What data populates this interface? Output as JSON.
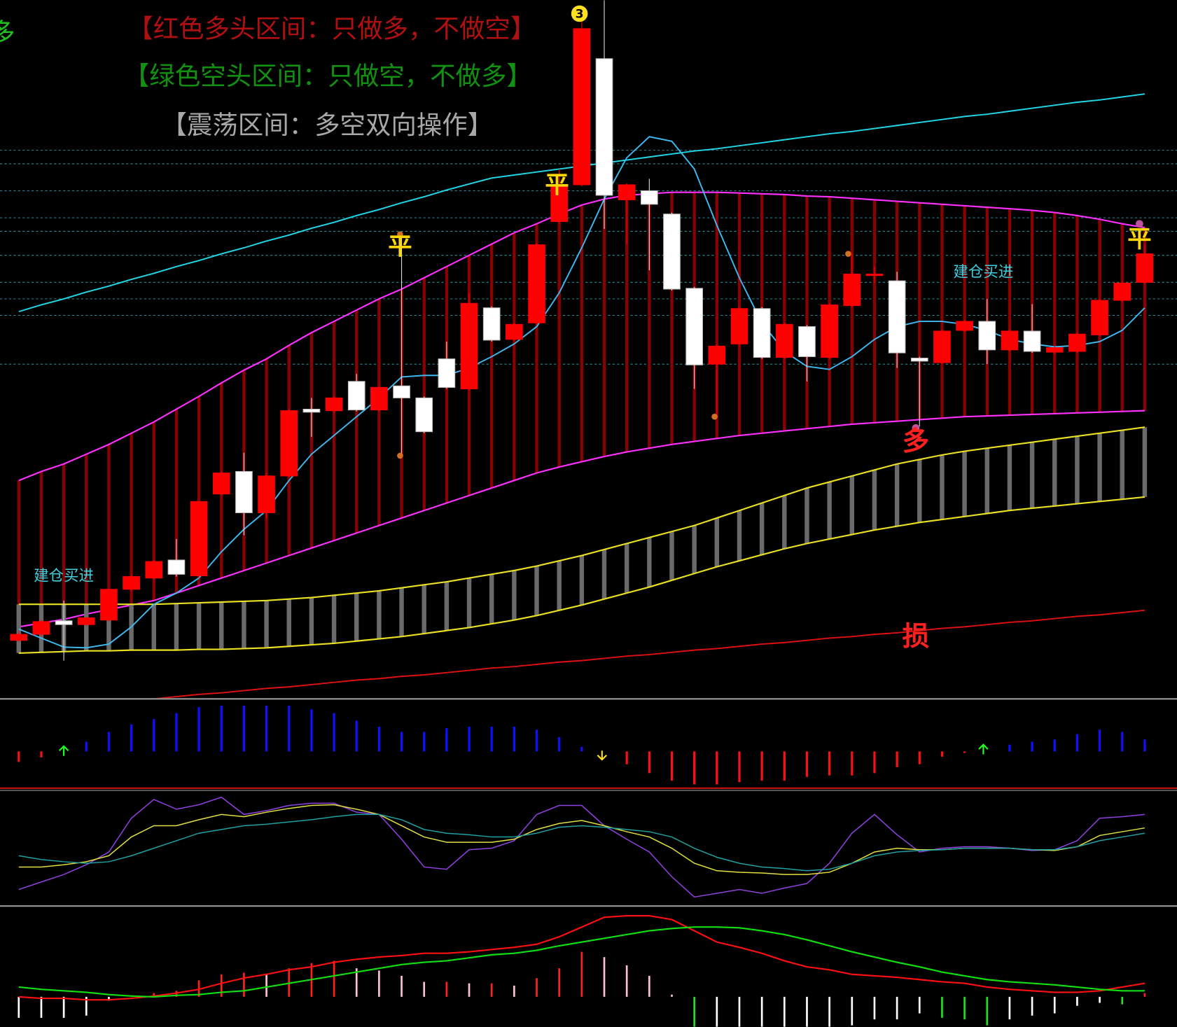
{
  "chart_data": [
    {
      "type": "candlestick",
      "ylim": [
        0,
        930
      ],
      "up_color": "#ff0000",
      "down_color": "#ffffff",
      "open": [
        77,
        85,
        103,
        98,
        104,
        145,
        160,
        184,
        163,
        272,
        302,
        247,
        296,
        385,
        383,
        422,
        384,
        416,
        400,
        452,
        412,
        520,
        478,
        500,
        635,
        684,
        852,
        664,
        676,
        645,
        546,
        445,
        472,
        519,
        454,
        495,
        454,
        523,
        563,
        556,
        453,
        447,
        490,
        502,
        464,
        489,
        461,
        462,
        484,
        530,
        554
      ],
      "high": [
        90,
        105,
        130,
        108,
        146,
        164,
        184,
        212,
        262,
        302,
        327,
        300,
        385,
        400,
        402,
        432,
        416,
        618,
        402,
        475,
        540,
        522,
        500,
        606,
        705,
        920,
        930,
        686,
        692,
        647,
        548,
        471,
        521,
        521,
        500,
        497,
        526,
        592,
        575,
        568,
        455,
        491,
        504,
        532,
        491,
        525,
        469,
        487,
        532,
        555,
        605
      ],
      "low": [
        75,
        82,
        50,
        96,
        102,
        143,
        158,
        162,
        160,
        270,
        217,
        240,
        294,
        348,
        380,
        382,
        382,
        323,
        353,
        412,
        410,
        475,
        476,
        498,
        633,
        682,
        625,
        605,
        570,
        543,
        412,
        375,
        470,
        452,
        452,
        422,
        452,
        521,
        553,
        440,
        362,
        445,
        488,
        445,
        462,
        460,
        459,
        460,
        482,
        528,
        552
      ],
      "close": [
        85,
        102,
        98,
        107,
        145,
        162,
        182,
        165,
        262,
        300,
        247,
        296,
        383,
        381,
        400,
        384,
        414,
        400,
        355,
        414,
        526,
        477,
        498,
        604,
        682,
        892,
        670,
        684,
        658,
        545,
        444,
        469,
        519,
        454,
        498,
        455,
        524,
        565,
        565,
        460,
        449,
        489,
        502,
        464,
        489,
        462,
        467,
        485,
        530,
        553,
        592
      ],
      "bands": [
        {
          "color": "#ff30ff",
          "bar_color": "#8b0000",
          "upper": [
            290,
            302,
            312,
            325,
            338,
            353,
            368,
            385,
            402,
            420,
            437,
            452,
            470,
            487,
            502,
            517,
            532,
            545,
            560,
            575,
            590,
            605,
            620,
            632,
            645,
            657,
            665,
            670,
            672,
            674,
            674,
            674,
            673,
            672,
            671,
            669,
            668,
            666,
            664,
            662,
            660,
            658,
            656,
            654,
            652,
            650,
            647,
            643,
            638,
            632,
            627
          ],
          "lower": [
            95,
            100,
            105,
            112,
            118,
            124,
            130,
            140,
            150,
            160,
            170,
            180,
            190,
            200,
            210,
            220,
            230,
            240,
            250,
            260,
            270,
            280,
            290,
            300,
            308,
            315,
            322,
            328,
            333,
            338,
            342,
            346,
            350,
            353,
            356,
            359,
            362,
            365,
            367,
            369,
            371,
            373,
            375,
            376,
            377,
            378,
            379,
            380,
            381,
            382,
            383
          ]
        },
        {
          "color": "#e8e020",
          "bar_color": "#6a6a6a",
          "upper": [
            125,
            125,
            125,
            125,
            125,
            125,
            125,
            126,
            127,
            128,
            129,
            130,
            132,
            134,
            137,
            140,
            143,
            147,
            151,
            155,
            160,
            165,
            170,
            176,
            183,
            190,
            198,
            206,
            214,
            222,
            230,
            240,
            250,
            260,
            270,
            280,
            288,
            296,
            304,
            312,
            318,
            324,
            329,
            333,
            337,
            341,
            345,
            349,
            353,
            357,
            361
          ],
          "lower": [
            60,
            61,
            62,
            63,
            63,
            64,
            64,
            64,
            65,
            65,
            66,
            67,
            69,
            71,
            73,
            76,
            79,
            82,
            86,
            90,
            94,
            99,
            104,
            110,
            117,
            124,
            132,
            140,
            148,
            157,
            166,
            175,
            183,
            191,
            199,
            206,
            212,
            218,
            224,
            229,
            234,
            238,
            242,
            246,
            250,
            253,
            256,
            259,
            262,
            265,
            268
          ]
        }
      ],
      "lines": [
        {
          "color": "#20d8e8",
          "values": [
            515,
            524,
            532,
            541,
            549,
            558,
            566,
            575,
            583,
            592,
            600,
            609,
            617,
            626,
            634,
            643,
            651,
            660,
            668,
            677,
            685,
            693,
            697,
            701,
            705,
            709,
            713,
            717,
            721,
            725,
            729,
            732,
            736,
            740,
            744,
            748,
            752,
            755,
            759,
            763,
            767,
            771,
            775,
            778,
            782,
            786,
            790,
            794,
            797,
            801,
            805
          ]
        },
        {
          "color": "#40b8f0",
          "values": [
            92,
            80,
            68,
            67,
            72,
            95,
            125,
            140,
            160,
            195,
            225,
            250,
            290,
            325,
            350,
            375,
            400,
            428,
            430,
            430,
            440,
            455,
            472,
            495,
            540,
            600,
            665,
            720,
            748,
            742,
            705,
            630,
            560,
            500,
            462,
            442,
            438,
            455,
            478,
            495,
            502,
            502,
            498,
            490,
            478,
            472,
            468,
            470,
            475,
            490,
            520
          ]
        },
        {
          "color": "#e01010",
          "values": [
            -17,
            -14,
            -11,
            -9,
            -6,
            -3,
            -1,
            2,
            5,
            7,
            10,
            13,
            15,
            18,
            21,
            24,
            26,
            29,
            31,
            34,
            37,
            40,
            42,
            45,
            48,
            50,
            53,
            56,
            58,
            61,
            64,
            66,
            69,
            72,
            74,
            77,
            80,
            82,
            85,
            87,
            90,
            93,
            95,
            98,
            101,
            103,
            106,
            109,
            111,
            114,
            117
          ]
        }
      ],
      "levels": [
        730,
        712,
        676,
        640,
        622,
        590,
        554,
        532,
        510,
        445
      ],
      "level_color": "#2a8a9a",
      "annotations": [
        {
          "text": "【红色多头区间：只做多，不做空】",
          "color": "#b01010"
        },
        {
          "text": "【绿色空头区间：只做空，不做多】",
          "color": "#129012"
        },
        {
          "text": "【震荡区间：多空双向操作】",
          "color": "#a8a8a8"
        },
        {
          "text": "多",
          "color": "#20c020"
        },
        {
          "text": "平",
          "color": "#ffd700"
        },
        {
          "text": "平",
          "color": "#ffd700"
        },
        {
          "text": "平",
          "color": "#ffd700"
        },
        {
          "text": "建仓买进",
          "color": "#40d0e0"
        },
        {
          "text": "建仓买进",
          "color": "#40d0e0"
        },
        {
          "text": "多",
          "color": "#ff2020"
        },
        {
          "text": "损",
          "color": "#ff2020"
        },
        {
          "text": "3",
          "color": "#000000"
        }
      ]
    },
    {
      "type": "bar",
      "ylim": [
        -49,
        69
      ],
      "pos_color": "#1010ff",
      "neg_color": "#ff1010",
      "values": [
        -14,
        -8,
        null,
        13,
        26,
        36,
        43,
        51,
        59,
        61,
        61,
        61,
        61,
        56,
        51,
        41,
        33,
        26,
        26,
        31,
        33,
        33,
        33,
        29,
        19,
        6,
        null,
        -17,
        -29,
        -39,
        -44,
        -44,
        -41,
        -39,
        -39,
        -34,
        -32,
        -32,
        -29,
        -21,
        -17,
        -7,
        -2,
        null,
        9,
        13,
        16,
        23,
        29,
        26,
        16
      ]
    },
    {
      "type": "line",
      "ylim": [
        0,
        150
      ],
      "lines": [
        {
          "color": "#9040e0",
          "values": [
            20,
            30,
            40,
            53,
            70,
            115,
            140,
            127,
            133,
            143,
            120,
            125,
            132,
            135,
            135,
            123,
            120,
            87,
            50,
            47,
            73,
            75,
            85,
            120,
            132,
            132,
            105,
            87,
            70,
            37,
            10,
            15,
            20,
            15,
            22,
            28,
            55,
            95,
            120,
            93,
            70,
            75,
            77,
            77,
            75,
            72,
            73,
            85,
            115,
            117,
            120
          ]
        },
        {
          "color": "#e0e040",
          "values": [
            50,
            50,
            53,
            57,
            65,
            90,
            105,
            105,
            113,
            120,
            117,
            123,
            128,
            132,
            133,
            127,
            120,
            105,
            90,
            83,
            83,
            83,
            87,
            100,
            108,
            112,
            105,
            97,
            90,
            75,
            55,
            45,
            43,
            42,
            40,
            40,
            43,
            55,
            70,
            75,
            73,
            73,
            75,
            75,
            75,
            73,
            72,
            77,
            92,
            97,
            102
          ]
        },
        {
          "color": "#20a0a0",
          "values": [
            65,
            60,
            57,
            55,
            57,
            65,
            75,
            85,
            95,
            100,
            105,
            107,
            110,
            113,
            117,
            120,
            120,
            113,
            100,
            95,
            93,
            90,
            90,
            95,
            103,
            105,
            103,
            100,
            97,
            90,
            75,
            63,
            55,
            50,
            48,
            45,
            47,
            55,
            65,
            70,
            72,
            73,
            75,
            75,
            75,
            73,
            73,
            77,
            85,
            90,
            95
          ]
        }
      ]
    },
    {
      "type": "macd",
      "ylim": [
        -40,
        118
      ],
      "lines": [
        {
          "color": "#ff1010",
          "values": [
            0,
            -2,
            -2,
            -4,
            -4,
            -2,
            1,
            5,
            10,
            18,
            25,
            30,
            36,
            40,
            46,
            50,
            53,
            55,
            58,
            58,
            60,
            63,
            66,
            70,
            80,
            93,
            106,
            108,
            108,
            103,
            88,
            73,
            66,
            58,
            48,
            40,
            36,
            30,
            28,
            26,
            23,
            20,
            18,
            13,
            10,
            8,
            6,
            6,
            8,
            13,
            18
          ]
        },
        {
          "color": "#10e010",
          "values": [
            13,
            10,
            8,
            6,
            3,
            1,
            0,
            2,
            3,
            6,
            8,
            13,
            18,
            23,
            28,
            33,
            38,
            43,
            46,
            48,
            52,
            56,
            58,
            62,
            68,
            73,
            78,
            83,
            88,
            91,
            93,
            93,
            92,
            88,
            83,
            76,
            68,
            60,
            53,
            46,
            40,
            33,
            28,
            23,
            20,
            18,
            16,
            13,
            10,
            8,
            8
          ]
        }
      ],
      "histogram": [
        -28,
        -28,
        -28,
        -25,
        -5,
        2,
        5,
        8,
        22,
        30,
        32,
        30,
        38,
        45,
        48,
        38,
        35,
        28,
        20,
        20,
        18,
        18,
        15,
        25,
        38,
        60,
        53,
        42,
        28,
        3,
        -40,
        -40,
        -40,
        -40,
        -40,
        -40,
        -40,
        -38,
        -30,
        -30,
        -22,
        -28,
        -30,
        -38,
        -30,
        -25,
        -22,
        -12,
        -8,
        -10,
        5
      ],
      "hist_colors": [
        "#ff2020",
        "#ffc0d0",
        "#20e020",
        "#ffffff"
      ]
    }
  ]
}
